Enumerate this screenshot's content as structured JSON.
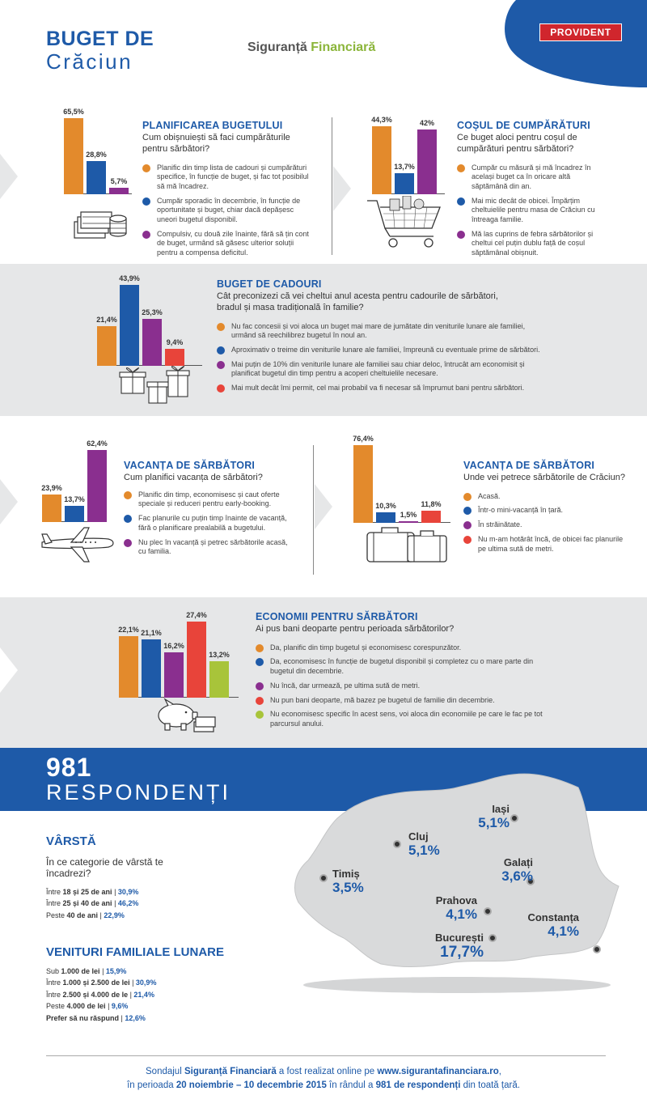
{
  "colors": {
    "orange": "#e38a2c",
    "blue": "#1e5aa8",
    "purple": "#8a2f8f",
    "red": "#e8443a",
    "green": "#a8c43a",
    "band": "#e6e7e8",
    "brand": "#1e5aa8"
  },
  "header": {
    "title_line1": "BUGET DE",
    "title_line2": "Crăciun",
    "brand_part1": "Siguranță",
    "brand_part2": "Financiară",
    "logo": "PROVIDENT"
  },
  "sections": {
    "planificare": {
      "title": "PLANIFICAREA BUGETULUI",
      "question": "Cum obișnuiești să faci cumpărăturile pentru sărbători?",
      "options": [
        "Planific din timp lista de cadouri și cumpărături specifice, în funcție de buget, și fac tot posibilul să mă încadrez.",
        "Cumpăr sporadic în decembrie, în funcție de oportunitate și buget, chiar dacă depășesc uneori bugetul disponibil.",
        "Compulsiv, cu două zile înainte, fără să țin cont de buget, urmând să găsesc ulterior soluții pentru a compensa deficitul."
      ]
    },
    "cos": {
      "title": "COȘUL DE CUMPĂRĂTURI",
      "question": "Ce buget aloci pentru coșul de cumpărături pentru sărbători?",
      "options": [
        "Cumpăr cu măsură și mă încadrez în același buget ca în oricare altă săptămână din an.",
        "Mai mic decât de obicei. Împărțim cheltuielile pentru masa de Crăciun cu întreaga familie.",
        "Mă las cuprins de febra sărbătorilor și cheltui cel puțin dublu față de coșul săptămânal obișnuit."
      ]
    },
    "cadouri": {
      "title": "BUGET DE CADOURI",
      "question": "Cât preconizezi că vei cheltui anul acesta pentru cadourile de sărbători, bradul și masa tradițională în familie?",
      "options": [
        "Nu fac concesii și voi aloca un buget mai mare de jumătate din veniturile lunare ale familiei, urmând să reechilibrez bugetul în noul an.",
        "Aproximativ o treime din veniturile lunare ale familiei, împreună cu eventuale prime de sărbători.",
        "Mai puțin de 10% din veniturile lunare ale familiei sau chiar deloc, întrucât am economisit și planificat bugetul din timp pentru a acoperi cheltuielile necesare.",
        "Mai mult decât îmi permit, cel mai probabil va fi necesar să împrumut bani pentru sărbători."
      ]
    },
    "vacanta1": {
      "title": "VACANȚA DE SĂRBĂTORI",
      "question": "Cum planifici vacanța de sărbători?",
      "options": [
        "Planific din timp, economisesc și caut oferte speciale și reduceri pentru early-booking.",
        "Fac planurile cu puțin timp înainte de vacanță, fără o planificare prealabilă a bugetului.",
        "Nu plec în vacanță și petrec sărbătorile acasă, cu familia."
      ]
    },
    "vacanta2": {
      "title": "VACANȚA DE SĂRBĂTORI",
      "question": "Unde vei petrece sărbătorile de Crăciun?",
      "options": [
        "Acasă.",
        "Într-o mini-vacanță în țară.",
        "În străinătate.",
        "Nu m-am hotărât încă, de obicei fac planurile pe ultima sută de metri."
      ]
    },
    "economii": {
      "title": "ECONOMII PENTRU SĂRBĂTORI",
      "question": "Ai pus bani deoparte pentru perioada sărbătorilor?",
      "options": [
        "Da, planific din timp bugetul și economisesc corespunzător.",
        "Da, economisesc în funcție de bugetul disponibil și completez cu o mare parte din bugetul din decembrie.",
        "Nu încă, dar urmează, pe ultima sută de metri.",
        "Nu pun bani deoparte, mă bazez pe bugetul de familie din decembrie.",
        "Nu economisesc specific în acest sens, voi aloca din economiile pe care le fac pe tot parcursul anului."
      ]
    }
  },
  "chart_data": [
    {
      "type": "bar",
      "id": "planificare",
      "categories": [
        "Planific din timp",
        "Cumpăr sporadic",
        "Compulsiv"
      ],
      "values": [
        65.5,
        28.8,
        5.7
      ],
      "labels": [
        "65,5%",
        "28,8%",
        "5,7%"
      ],
      "colors": [
        "#e38a2c",
        "#1e5aa8",
        "#8a2f8f"
      ]
    },
    {
      "type": "bar",
      "id": "cos",
      "categories": [
        "Cumpăr cu măsură",
        "Mai mic decât de obicei",
        "Dublu"
      ],
      "values": [
        44.3,
        13.7,
        42
      ],
      "labels": [
        "44,3%",
        "13,7%",
        "42%"
      ],
      "colors": [
        "#e38a2c",
        "#1e5aa8",
        "#8a2f8f"
      ]
    },
    {
      "type": "bar",
      "id": "cadouri",
      "categories": [
        "Peste jumătate",
        "O treime",
        "Sub 10%",
        "Împrumut"
      ],
      "values": [
        21.4,
        43.9,
        25.3,
        9.4
      ],
      "labels": [
        "21,4%",
        "43,9%",
        "25,3%",
        "9,4%"
      ],
      "colors": [
        "#e38a2c",
        "#1e5aa8",
        "#8a2f8f",
        "#e8443a"
      ]
    },
    {
      "type": "bar",
      "id": "vacanta1",
      "categories": [
        "Planific din timp",
        "Cu puțin timp înainte",
        "Nu plec"
      ],
      "values": [
        23.9,
        13.7,
        62.4
      ],
      "labels": [
        "23,9%",
        "13,7%",
        "62,4%"
      ],
      "colors": [
        "#e38a2c",
        "#1e5aa8",
        "#8a2f8f"
      ]
    },
    {
      "type": "bar",
      "id": "vacanta2",
      "categories": [
        "Acasă",
        "Mini-vacanță în țară",
        "În străinătate",
        "Nehotărât"
      ],
      "values": [
        76.4,
        10.3,
        1.5,
        11.8
      ],
      "labels": [
        "76,4%",
        "10,3%",
        "1,5%",
        "11,8%"
      ],
      "colors": [
        "#e38a2c",
        "#1e5aa8",
        "#8a2f8f",
        "#e8443a"
      ]
    },
    {
      "type": "bar",
      "id": "economii",
      "categories": [
        "Da, planific",
        "Da, economisesc",
        "Nu încă",
        "Nu pun bani",
        "Nu economisesc specific"
      ],
      "values": [
        22.1,
        21.1,
        16.2,
        27.4,
        13.2
      ],
      "labels": [
        "22,1%",
        "21,1%",
        "16,2%",
        "27,4%",
        "13,2%"
      ],
      "colors": [
        "#e38a2c",
        "#1e5aa8",
        "#8a2f8f",
        "#e8443a",
        "#a8c43a"
      ]
    }
  ],
  "respondents": {
    "number": "981",
    "label": "RESPONDENȚI"
  },
  "age": {
    "title": "VÂRSTĂ",
    "question": "În ce categorie de vârstă te încadrezi?",
    "rows": [
      {
        "pre": "Între ",
        "bold": "18 și 25 de ani",
        "sep": " | ",
        "value": "30,9%"
      },
      {
        "pre": "Între ",
        "bold": "25 și 40 de ani",
        "sep": " | ",
        "value": "46,2%"
      },
      {
        "pre": "Peste ",
        "bold": "40 de ani",
        "sep": " | ",
        "value": "22,9%"
      }
    ]
  },
  "income": {
    "title": "VENITURI FAMILIALE LUNARE",
    "rows": [
      {
        "pre": "Sub ",
        "bold": "1.000 de lei",
        "sep": " | ",
        "value": "15,9%"
      },
      {
        "pre": "Între ",
        "bold": "1.000 și 2.500 de lei",
        "sep": " | ",
        "value": "30,9%"
      },
      {
        "pre": "Între ",
        "bold": "2.500 și 4.000 de le",
        "sep": " | ",
        "value": "21,4%"
      },
      {
        "pre": "Peste ",
        "bold": "4.000 de lei",
        "sep": " | ",
        "value": "9,6%"
      },
      {
        "pre": "",
        "bold": "Prefer să nu răspund",
        "sep": " | ",
        "value": "12,6%"
      }
    ]
  },
  "map": {
    "cities": [
      {
        "name": "Iași",
        "value": "5,1%"
      },
      {
        "name": "Cluj",
        "value": "5,1%"
      },
      {
        "name": "Galați",
        "value": "3,6%"
      },
      {
        "name": "Timiș",
        "value": "3,5%"
      },
      {
        "name": "Prahova",
        "value": "4,1%"
      },
      {
        "name": "Constanța",
        "value": "4,1%"
      },
      {
        "name": "București",
        "value": "17,7%"
      }
    ]
  },
  "footer": {
    "l1a": "Sondajul ",
    "l1b": "Siguranță Financiară",
    "l1c": " a fost realizat online pe ",
    "l1d": "www.sigurantafinanciara.ro",
    ",": "",
    "l1e": ",",
    "l2a": "în perioada ",
    "l2b": "20 noiembrie – 10 decembrie 2015",
    "l2c": " în rândul a ",
    "l2d": "981 de respondenți",
    "l2e": " din toată țară."
  }
}
